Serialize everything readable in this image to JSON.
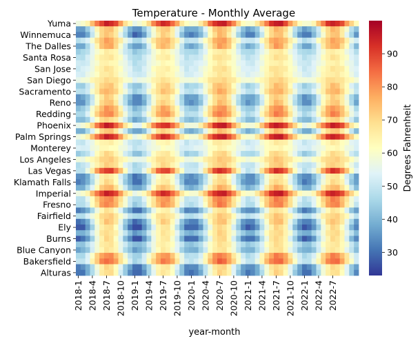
{
  "chart_data": {
    "type": "heatmap",
    "title": "Temperature - Monthly Average",
    "xlabel": "year-month",
    "ylabel": "",
    "colorbar": {
      "label": "Degrees Fahrenheit",
      "range": [
        23,
        100
      ],
      "ticks": [
        30,
        40,
        50,
        60,
        70,
        80,
        90
      ],
      "colormap": "RdYlBu_r"
    },
    "x_tick_labels": [
      "2018-1",
      "2018-4",
      "2018-7",
      "2018-10",
      "2019-1",
      "2019-4",
      "2019-7",
      "2019-10",
      "2020-1",
      "2020-4",
      "2020-7",
      "2020-10",
      "2021-1",
      "2021-4",
      "2021-7",
      "2021-10",
      "2022-1",
      "2022-4",
      "2022-7"
    ],
    "y_tick_labels": [
      "Yuma",
      "Winnemuca",
      "The Dalles",
      "Santa Rosa",
      "San Jose",
      "San Diego",
      "Sacramento",
      "Reno",
      "Redding",
      "Phoenix",
      "Palm Springs",
      "Monterey",
      "Los Angeles",
      "Las Vegas",
      "Klamath Falls",
      "Imperial",
      "Fresno",
      "Fairfield",
      "Ely",
      "Burns",
      "Blue Canyon",
      "Bakersfield",
      "Alturas"
    ],
    "rows_hidden_labels_note": "",
    "cities": [
      {
        "name": "Yuma",
        "jan": 58,
        "jul": 95
      },
      {
        "name": "",
        "jan": 36,
        "jul": 75
      },
      {
        "name": "Winnemuca",
        "jan": 31,
        "jul": 74
      },
      {
        "name": "",
        "jan": 48,
        "jul": 78
      },
      {
        "name": "The Dalles",
        "jan": 37,
        "jul": 78
      },
      {
        "name": "",
        "jan": 45,
        "jul": 66
      },
      {
        "name": "Santa Rosa",
        "jan": 48,
        "jul": 68
      },
      {
        "name": "",
        "jan": 50,
        "jul": 65
      },
      {
        "name": "San Jose",
        "jan": 51,
        "jul": 68
      },
      {
        "name": "",
        "jan": 52,
        "jul": 67
      },
      {
        "name": "San Diego",
        "jan": 57,
        "jul": 70
      },
      {
        "name": "",
        "jan": 44,
        "jul": 74
      },
      {
        "name": "Sacramento",
        "jan": 47,
        "jul": 76
      },
      {
        "name": "",
        "jan": 35,
        "jul": 72
      },
      {
        "name": "Reno",
        "jan": 34,
        "jul": 74
      },
      {
        "name": "",
        "jan": 42,
        "jul": 80
      },
      {
        "name": "Redding",
        "jan": 46,
        "jul": 82
      },
      {
        "name": "",
        "jan": 40,
        "jul": 72
      },
      {
        "name": "Phoenix",
        "jan": 56,
        "jul": 95
      },
      {
        "name": "",
        "jan": 38,
        "jul": 74
      },
      {
        "name": "Palm Springs",
        "jan": 58,
        "jul": 95
      },
      {
        "name": "",
        "jan": 50,
        "jul": 66
      },
      {
        "name": "Monterey",
        "jan": 52,
        "jul": 63
      },
      {
        "name": "",
        "jan": 44,
        "jul": 70
      },
      {
        "name": "Los Angeles",
        "jan": 57,
        "jul": 72
      },
      {
        "name": "",
        "jan": 48,
        "jul": 72
      },
      {
        "name": "Las Vegas",
        "jan": 48,
        "jul": 92
      },
      {
        "name": "",
        "jan": 33,
        "jul": 68
      },
      {
        "name": "Klamath Falls",
        "jan": 32,
        "jul": 70
      },
      {
        "name": "",
        "jan": 38,
        "jul": 76
      },
      {
        "name": "Imperial",
        "jan": 58,
        "jul": 95
      },
      {
        "name": "",
        "jan": 48,
        "jul": 82
      },
      {
        "name": "Fresno",
        "jan": 46,
        "jul": 82
      },
      {
        "name": "",
        "jan": 32,
        "jul": 68
      },
      {
        "name": "Fairfield",
        "jan": 47,
        "jul": 72
      },
      {
        "name": "",
        "jan": 31,
        "jul": 74
      },
      {
        "name": "Ely",
        "jan": 27,
        "jul": 70
      },
      {
        "name": "",
        "jan": 38,
        "jul": 70
      },
      {
        "name": "Burns",
        "jan": 28,
        "jul": 70
      },
      {
        "name": "",
        "jan": 42,
        "jul": 68
      },
      {
        "name": "Blue Canyon",
        "jan": 38,
        "jul": 68
      },
      {
        "name": "",
        "jan": 46,
        "jul": 82
      },
      {
        "name": "Bakersfield",
        "jan": 48,
        "jul": 85
      },
      {
        "name": "",
        "jan": 32,
        "jul": 70
      },
      {
        "name": "Alturas",
        "jan": 30,
        "jul": 70
      }
    ],
    "months_count": 60,
    "year_offsets": {
      "2018": 0,
      "2019": -2,
      "2020": 1,
      "2021": 1,
      "2022": 0
    }
  }
}
